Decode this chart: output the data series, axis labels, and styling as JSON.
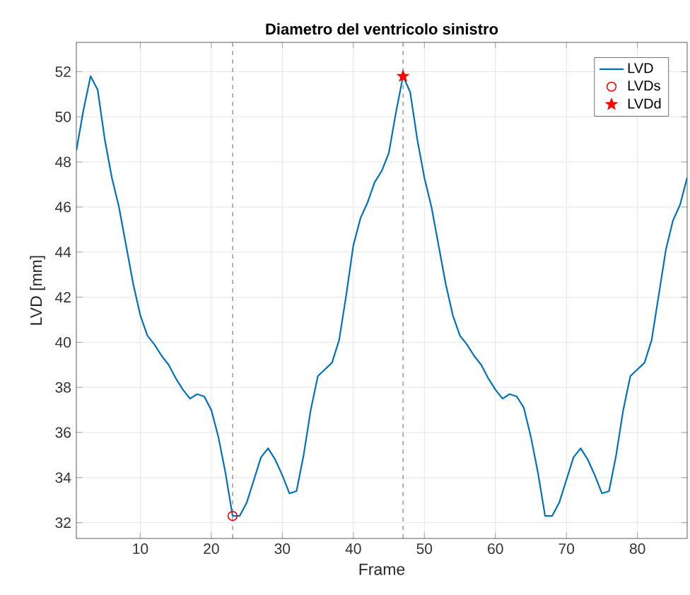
{
  "chart_data": {
    "type": "line",
    "title": "Diametro del ventricolo sinistro",
    "xlabel": "Frame",
    "ylabel": "LVD [mm]",
    "xlim": [
      1,
      87
    ],
    "ylim": [
      31.3,
      53.3
    ],
    "xticks": [
      10,
      20,
      30,
      40,
      50,
      60,
      70,
      80
    ],
    "yticks": [
      32,
      34,
      36,
      38,
      40,
      42,
      44,
      46,
      48,
      50,
      52
    ],
    "grid": true,
    "legend": "top right",
    "series": [
      {
        "name": "LVD",
        "color": "#0072bd",
        "marker": "none",
        "x": [
          1,
          2,
          3,
          4,
          5,
          6,
          7,
          8,
          9,
          10,
          11,
          12,
          13,
          14,
          15,
          16,
          17,
          18,
          19,
          20,
          21,
          22,
          23,
          24,
          25,
          26,
          27,
          28,
          29,
          30,
          31,
          32,
          33,
          34,
          35,
          36,
          37,
          38,
          39,
          40,
          41,
          42,
          43,
          44,
          45,
          46,
          47,
          48,
          49,
          50,
          51,
          52,
          53,
          54,
          55,
          56,
          57,
          58,
          59,
          60,
          61,
          62,
          63,
          64,
          65,
          66,
          67,
          68,
          69,
          70,
          71,
          72,
          73,
          74,
          75,
          76,
          77,
          78,
          79,
          80,
          81,
          82,
          83,
          84,
          85,
          86,
          87
        ],
        "values": [
          48.5,
          50.3,
          51.8,
          51.2,
          49,
          47.3,
          46,
          44.3,
          42.6,
          41.2,
          40.3,
          39.9,
          39.4,
          39,
          38.4,
          37.9,
          37.5,
          37.7,
          37.6,
          37,
          35.8,
          34.2,
          32.3,
          32.3,
          32.9,
          33.9,
          34.9,
          35.3,
          34.8,
          34.1,
          33.3,
          33.4,
          35,
          37,
          38.5,
          38.8,
          39.1,
          40.1,
          42.1,
          44.3,
          45.5,
          46.2,
          47.1,
          47.6,
          48.4,
          50.2,
          51.8,
          51.1,
          49,
          47.3,
          46,
          44.3,
          42.6,
          41.2,
          40.3,
          39.9,
          39.4,
          39,
          38.4,
          37.9,
          37.5,
          37.7,
          37.6,
          37.1,
          35.8,
          34.2,
          32.3,
          32.3,
          32.9,
          33.9,
          34.9,
          35.3,
          34.8,
          34.1,
          33.3,
          33.4,
          35,
          37,
          38.5,
          38.8,
          39.1,
          40.1,
          42.1,
          44.1,
          45.4,
          46.1,
          47.3
        ]
      },
      {
        "name": "LVDs",
        "type": "scatter",
        "color": "#ff0000",
        "marker": "circle",
        "x": [
          23
        ],
        "values": [
          32.3
        ]
      },
      {
        "name": "LVDd",
        "type": "scatter",
        "color": "#ff0000",
        "marker": "star",
        "x": [
          47
        ],
        "values": [
          51.8
        ]
      }
    ],
    "ref_lines": [
      {
        "axis": "x",
        "value": 23,
        "color": "#404040",
        "line_style": "dashed"
      },
      {
        "axis": "x",
        "value": 47,
        "color": "#404040",
        "line_style": "dashed"
      }
    ]
  }
}
